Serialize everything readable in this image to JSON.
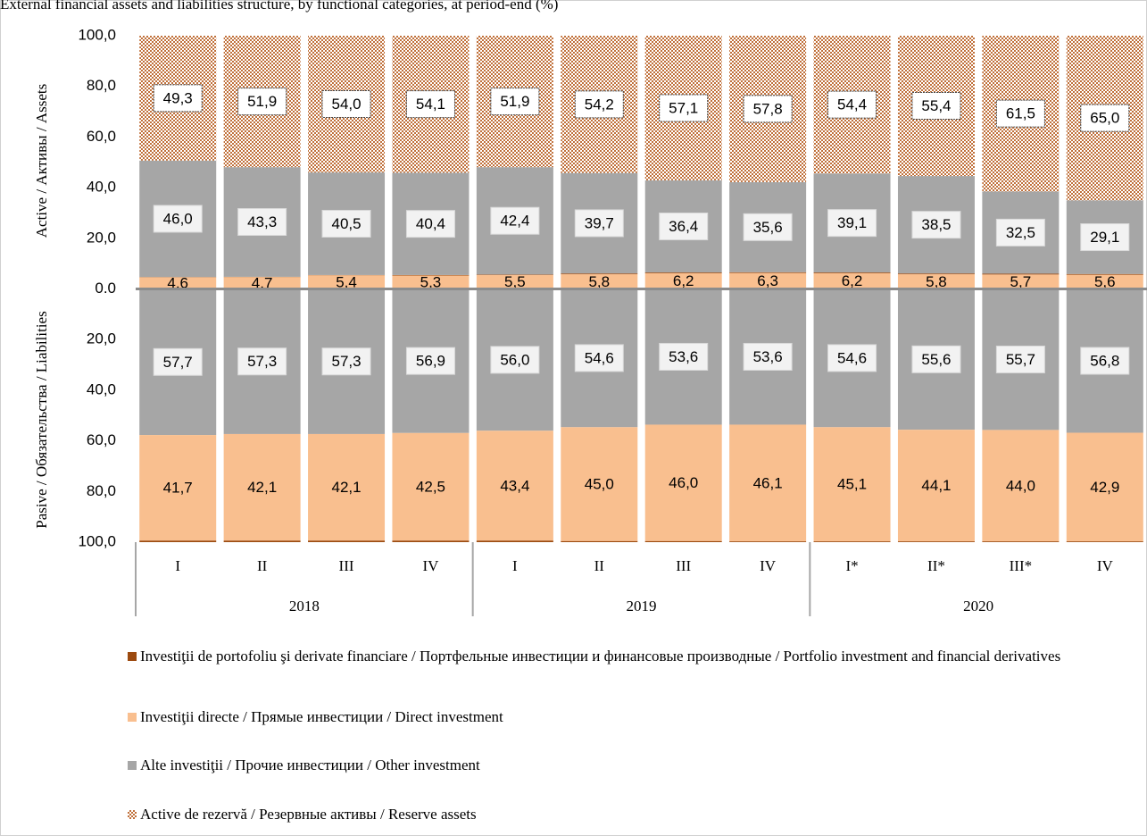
{
  "chart_data": {
    "type": "diverging-stacked-bar",
    "title": "External financial assets and liabilities structure, by functional categories, at period-end (%)",
    "assets_label": "Active / Активы / Assets",
    "liabilities_label": "Pasive / Обязательства / Liabilities",
    "categories": [
      "I",
      "II",
      "III",
      "IV",
      "I",
      "II",
      "III",
      "IV",
      "I*",
      "II*",
      "III*",
      "IV"
    ],
    "groups": [
      "2018",
      "2019",
      "2020"
    ],
    "ylim": [
      -100,
      100
    ],
    "yticks": [
      {
        "value": -100,
        "label": "100,0"
      },
      {
        "value": -80,
        "label": "80,0"
      },
      {
        "value": -60,
        "label": "60,0"
      },
      {
        "value": -40,
        "label": "40,0"
      },
      {
        "value": -20,
        "label": "20,0"
      },
      {
        "value": 0,
        "label": "0.0"
      },
      {
        "value": 20,
        "label": "20,0"
      },
      {
        "value": 40,
        "label": "40,0"
      },
      {
        "value": 60,
        "label": "60,0"
      },
      {
        "value": 80,
        "label": "80,0"
      },
      {
        "value": 100,
        "label": "100,0"
      }
    ],
    "series": [
      {
        "name": "Investiţii de portofoliu şi derivate financiare / Портфельные инвестиции и финансовые производные / Portfolio investment and financial derivatives",
        "color": "#9c4a0f",
        "values": [
          0.1,
          0.1,
          0.1,
          0.2,
          0.2,
          0.3,
          0.3,
          0.3,
          0.3,
          0.3,
          0.3,
          0.3
        ],
        "liabilities": {
          "values": [
            0.6,
            0.6,
            0.6,
            0.6,
            0.6,
            0.4,
            0.4,
            0.3,
            0.3,
            0.3,
            0.3,
            0.3
          ]
        }
      },
      {
        "name": "Investiţii directe / Прямые инвестиции / Direct investment",
        "color": "#f9bf8f",
        "values": [
          4.6,
          4.7,
          5.4,
          5.3,
          5.5,
          5.8,
          6.2,
          6.3,
          6.2,
          5.8,
          5.7,
          5.6
        ],
        "value_labels": [
          "4,6",
          "4,7",
          "5,4",
          "5,3",
          "5,5",
          "5,8",
          "6,2",
          "6,3",
          "6,2",
          "5,8",
          "5,7",
          "5,6"
        ],
        "liabilities": {
          "values": [
            41.7,
            42.1,
            42.1,
            42.5,
            43.4,
            45.0,
            46.0,
            46.1,
            45.1,
            44.1,
            44.0,
            42.9
          ],
          "value_labels": [
            "41,7",
            "42,1",
            "42,1",
            "42,5",
            "43,4",
            "45,0",
            "46,0",
            "46,1",
            "45,1",
            "44,1",
            "44,0",
            "42,9"
          ]
        }
      },
      {
        "name": "Alte investiţii / Прочие инвестиции / Other investment",
        "color": "#a6a6a6",
        "values": [
          46.0,
          43.3,
          40.5,
          40.4,
          42.4,
          39.7,
          36.4,
          35.6,
          39.1,
          38.5,
          32.5,
          29.1
        ],
        "value_labels": [
          "46,0",
          "43,3",
          "40,5",
          "40,4",
          "42,4",
          "39,7",
          "36,4",
          "35,6",
          "39,1",
          "38,5",
          "32,5",
          "29,1"
        ],
        "liabilities": {
          "values": [
            57.7,
            57.3,
            57.3,
            56.9,
            56.0,
            54.6,
            53.6,
            53.6,
            54.6,
            55.6,
            55.7,
            56.8
          ],
          "value_labels": [
            "57,7",
            "57,3",
            "57,3",
            "56,9",
            "56,0",
            "54,6",
            "53,6",
            "53,6",
            "54,6",
            "55,6",
            "55,7",
            "56,8"
          ]
        }
      },
      {
        "name": "Active de rezervă / Резервные активы / Reserve assets",
        "color": "#c0703a",
        "pattern": "checker",
        "values": [
          49.3,
          51.9,
          54.0,
          54.1,
          51.9,
          54.2,
          57.1,
          57.8,
          54.4,
          55.4,
          61.5,
          65.0
        ],
        "value_labels": [
          "49,3",
          "51,9",
          "54,0",
          "54,1",
          "51,9",
          "54,2",
          "57,1",
          "57,8",
          "54,4",
          "55,4",
          "61,5",
          "65,0"
        ]
      }
    ]
  }
}
